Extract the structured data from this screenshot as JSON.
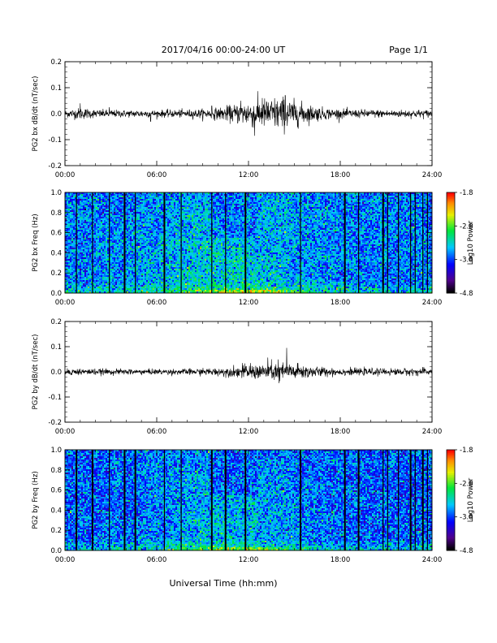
{
  "header": {
    "title": "2017/04/16  00:00-24:00 UT",
    "page": "Page 1/1"
  },
  "footer": {
    "xlabel": "Universal Time (hh:mm)"
  },
  "chart_data": [
    {
      "type": "line",
      "ylabel": "PG2 bx dB/dt (nT/sec)",
      "x_ticks": [
        "00:00",
        "06:00",
        "12:00",
        "18:00",
        "24:00"
      ],
      "y_ticks": [
        "0.2",
        "0.1",
        "0.0",
        "-0.1",
        "-0.2"
      ],
      "xlim": [
        0,
        24
      ],
      "ylim": [
        -0.2,
        0.2
      ],
      "x": [
        0,
        1,
        2,
        3,
        4,
        5,
        6,
        7,
        8,
        9,
        10,
        11,
        12,
        13,
        14,
        15,
        16,
        17,
        18,
        19,
        20,
        21,
        22,
        23,
        24
      ],
      "envelope": [
        0.012,
        0.02,
        0.014,
        0.013,
        0.012,
        0.013,
        0.012,
        0.013,
        0.014,
        0.016,
        0.02,
        0.03,
        0.045,
        0.05,
        0.06,
        0.045,
        0.03,
        0.02,
        0.016,
        0.014,
        0.014,
        0.013,
        0.013,
        0.014,
        0.013
      ],
      "peaks": [
        [
          1.0,
          0.04
        ],
        [
          2.9,
          0.025
        ],
        [
          9.6,
          0.03
        ],
        [
          11.5,
          0.05
        ],
        [
          12.9,
          0.06
        ],
        [
          14.4,
          0.07
        ],
        [
          12.4,
          -0.085
        ],
        [
          5.6,
          -0.03
        ]
      ]
    },
    {
      "type": "heatmap",
      "ylabel": "PG2 bx Freq (Hz)",
      "x_ticks": [
        "00:00",
        "06:00",
        "12:00",
        "18:00",
        "24:00"
      ],
      "y_ticks": [
        "1.0",
        "0.8",
        "0.6",
        "0.4",
        "0.2",
        "0.0"
      ],
      "xlim": [
        0,
        24
      ],
      "ylim": [
        0,
        1
      ],
      "colorbar": {
        "label": "Log10 Power",
        "ticks": [
          "-1.8",
          "-2.8",
          "-3.8",
          "-4.8"
        ],
        "range": [
          -4.8,
          -1.8
        ]
      },
      "gap_lines_hours": [
        0.75,
        1.8,
        2.9,
        3.9,
        4.6,
        6.5,
        7.6,
        9.6,
        10.5,
        11.8,
        15.4,
        18.3,
        19.2,
        20.8,
        21.1,
        21.8,
        22.6,
        22.9,
        23.4,
        23.7
      ],
      "background_power": -3.5,
      "low_freq_power": -2.6
    },
    {
      "type": "line",
      "ylabel": "PG2 by dB/dt (nT/sec)",
      "x_ticks": [
        "00:00",
        "06:00",
        "12:00",
        "18:00",
        "24:00"
      ],
      "y_ticks": [
        "0.2",
        "0.1",
        "0.0",
        "-0.1",
        "-0.2"
      ],
      "xlim": [
        0,
        24
      ],
      "ylim": [
        -0.2,
        0.2
      ],
      "x": [
        0,
        1,
        2,
        3,
        4,
        5,
        6,
        7,
        8,
        9,
        10,
        11,
        12,
        13,
        14,
        15,
        16,
        17,
        18,
        19,
        20,
        21,
        22,
        23,
        24
      ],
      "envelope": [
        0.012,
        0.012,
        0.011,
        0.01,
        0.01,
        0.01,
        0.01,
        0.01,
        0.011,
        0.012,
        0.014,
        0.018,
        0.025,
        0.03,
        0.035,
        0.03,
        0.022,
        0.016,
        0.013,
        0.012,
        0.012,
        0.012,
        0.012,
        0.013,
        0.012
      ],
      "peaks": [
        [
          11.6,
          0.035
        ],
        [
          13.5,
          0.05
        ],
        [
          14.5,
          0.095
        ],
        [
          14.0,
          -0.045
        ]
      ]
    },
    {
      "type": "heatmap",
      "ylabel": "PG2 by Freq (Hz)",
      "x_ticks": [
        "00:00",
        "06:00",
        "12:00",
        "18:00",
        "24:00"
      ],
      "y_ticks": [
        "1.0",
        "0.8",
        "0.6",
        "0.4",
        "0.2",
        "0.0"
      ],
      "xlim": [
        0,
        24
      ],
      "ylim": [
        0,
        1
      ],
      "colorbar": {
        "label": "Log10 Power",
        "ticks": [
          "-1.8",
          "-2.8",
          "-3.8",
          "-4.8"
        ],
        "range": [
          -4.8,
          -1.8
        ]
      },
      "gap_lines_hours": [
        0.75,
        1.8,
        2.9,
        3.9,
        4.6,
        6.5,
        7.6,
        9.6,
        10.5,
        11.8,
        15.4,
        18.3,
        19.2,
        20.8,
        21.1,
        21.8,
        22.6,
        22.9,
        23.4,
        23.7
      ],
      "background_power": -3.6,
      "low_freq_power": -2.7
    }
  ]
}
